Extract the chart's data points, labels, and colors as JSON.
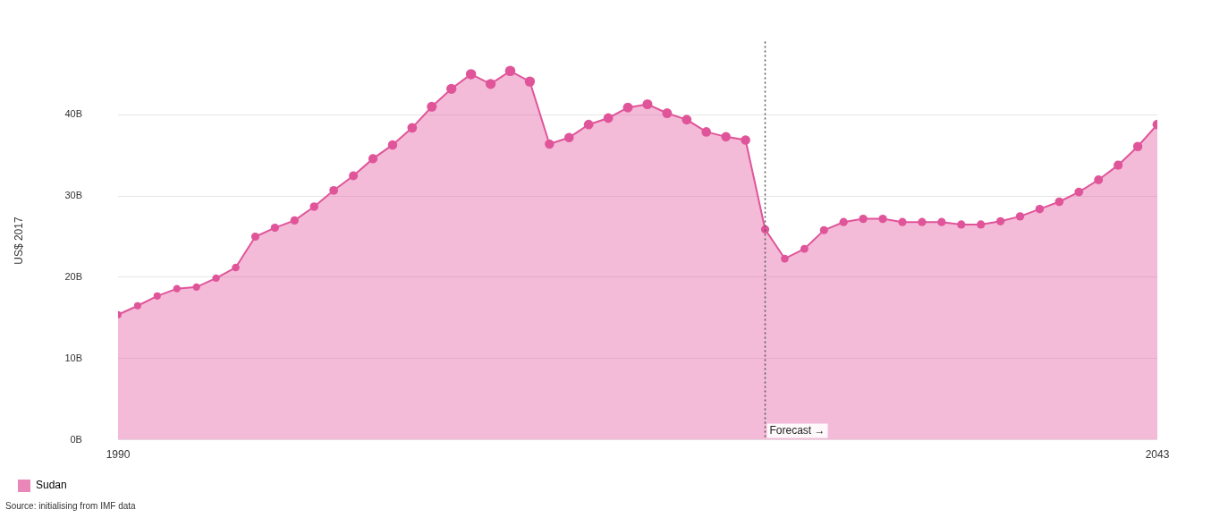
{
  "chart_data": {
    "type": "area",
    "ylabel": "US$ 2017",
    "x": [
      1990,
      1991,
      1992,
      1993,
      1994,
      1995,
      1996,
      1997,
      1998,
      1999,
      2000,
      2001,
      2002,
      2003,
      2004,
      2005,
      2006,
      2007,
      2008,
      2009,
      2010,
      2011,
      2012,
      2013,
      2014,
      2015,
      2016,
      2017,
      2018,
      2019,
      2020,
      2021,
      2022,
      2023,
      2024,
      2025,
      2026,
      2027,
      2028,
      2029,
      2030,
      2031,
      2032,
      2033,
      2034,
      2035,
      2036,
      2037,
      2038,
      2039,
      2040,
      2041,
      2042,
      2043
    ],
    "series": [
      {
        "name": "Sudan",
        "color": "#e0559a",
        "values": [
          15.4,
          16.5,
          17.7,
          18.6,
          18.8,
          19.9,
          21.2,
          25.0,
          26.1,
          27.0,
          28.7,
          30.7,
          32.5,
          34.6,
          36.3,
          38.4,
          41.0,
          43.2,
          45.0,
          43.8,
          45.4,
          44.1,
          36.4,
          37.2,
          38.8,
          39.6,
          40.9,
          41.3,
          40.2,
          39.4,
          37.9,
          37.3,
          36.9,
          25.9,
          22.3,
          23.5,
          25.8,
          26.8,
          27.2,
          27.2,
          26.8,
          26.8,
          26.8,
          26.5,
          26.5,
          26.9,
          27.5,
          28.4,
          29.3,
          30.5,
          32.0,
          33.8,
          36.1,
          38.8
        ]
      }
    ],
    "xlim": [
      1990,
      2043
    ],
    "xticks": [
      1990,
      2043
    ],
    "ylim": [
      0,
      49
    ],
    "yticks": [
      {
        "value": 0,
        "label": "0B"
      },
      {
        "value": 10,
        "label": "10B"
      },
      {
        "value": 20,
        "label": "20B"
      },
      {
        "value": 30,
        "label": "30B"
      },
      {
        "value": 40,
        "label": "40B"
      }
    ],
    "grid": "y",
    "marker": "circle",
    "legend": "bottom left",
    "ref_lines": [
      {
        "axis": "x",
        "value": 2023,
        "label": "Forecast →",
        "line_style": "dotted",
        "color": "#555555"
      }
    ],
    "annotations": [
      "Source: initialising from IMF data"
    ]
  }
}
